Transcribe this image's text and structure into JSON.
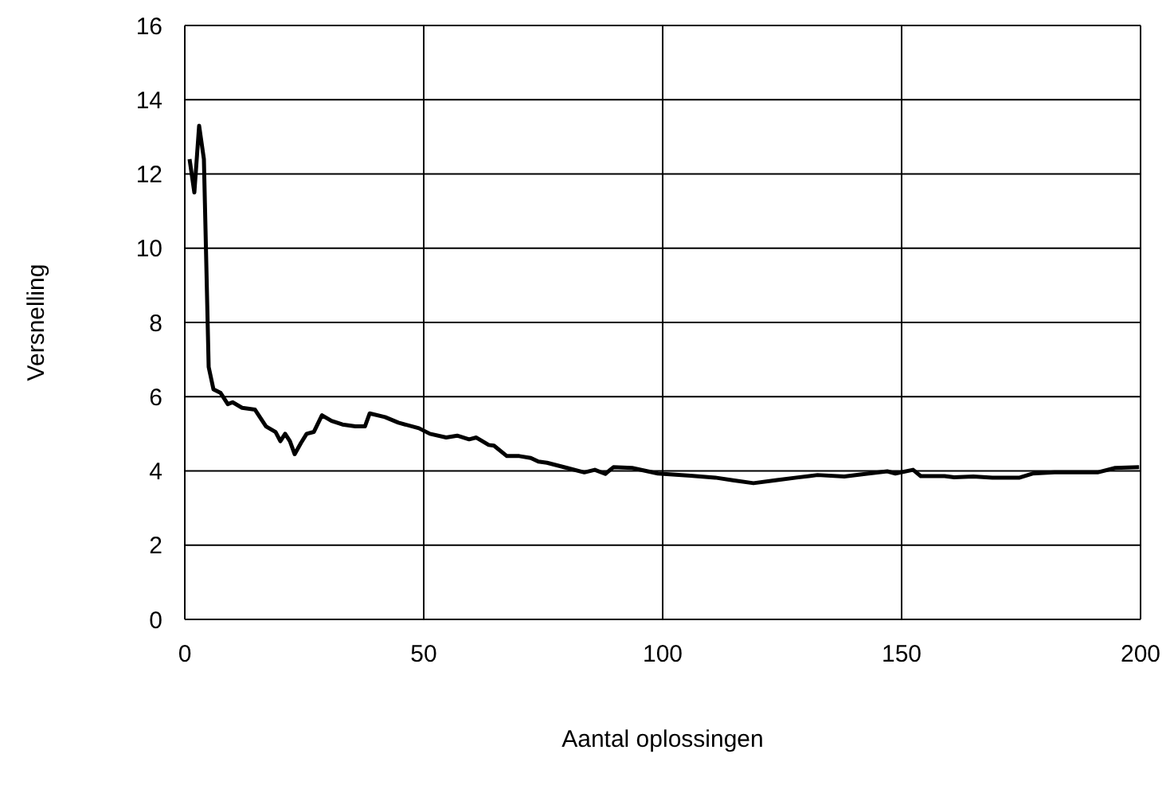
{
  "chart_data": {
    "type": "line",
    "xlabel": "Aantal oplossingen",
    "ylabel": "Versnelling",
    "x": [
      1,
      2,
      3,
      4,
      5,
      6,
      7.5,
      9,
      10,
      12,
      14.7,
      17,
      19,
      20,
      21,
      22,
      23,
      24.3,
      25.5,
      27,
      28.7,
      30.7,
      33,
      35.7,
      37.7,
      38.7,
      41.9,
      44.7,
      49,
      51.3,
      54.7,
      57,
      59.5,
      61,
      63.6,
      64.7,
      67.4,
      70,
      72.4,
      74,
      75.8,
      80,
      83.6,
      85.8,
      88,
      89.7,
      93.6,
      99,
      105.8,
      111,
      114.7,
      119,
      123.6,
      128,
      132.4,
      138,
      142.4,
      147,
      148.7,
      152.4,
      154,
      159,
      161,
      165,
      169,
      174.7,
      177.4,
      182,
      191,
      194.7,
      199.7
    ],
    "series": [
      {
        "color": "#000000",
        "values": [
          12.4,
          11.5,
          13.3,
          12.4,
          6.8,
          6.2,
          6.1,
          5.8,
          5.85,
          5.7,
          5.65,
          5.2,
          5.05,
          4.8,
          5.0,
          4.8,
          4.45,
          4.75,
          5.0,
          5.05,
          5.5,
          5.35,
          5.25,
          5.2,
          5.2,
          5.55,
          5.45,
          5.3,
          5.15,
          5.0,
          4.9,
          4.95,
          4.85,
          4.9,
          4.7,
          4.68,
          4.4,
          4.4,
          4.35,
          4.25,
          4.22,
          4.08,
          3.96,
          4.03,
          3.92,
          4.1,
          4.08,
          3.93,
          3.87,
          3.82,
          3.75,
          3.67,
          3.75,
          3.82,
          3.89,
          3.85,
          3.92,
          3.99,
          3.93,
          4.03,
          3.86,
          3.86,
          3.83,
          3.85,
          3.82,
          3.82,
          3.93,
          3.96,
          3.96,
          4.08,
          4.1
        ]
      }
    ],
    "xlim": [
      0,
      200
    ],
    "xticks": [
      0,
      50,
      100,
      150,
      200
    ],
    "ylim": [
      0,
      16
    ],
    "yticks": [
      0,
      2,
      4,
      6,
      8,
      10,
      12,
      14,
      16
    ],
    "grid": true,
    "marker": "none",
    "line_style": "solid"
  }
}
